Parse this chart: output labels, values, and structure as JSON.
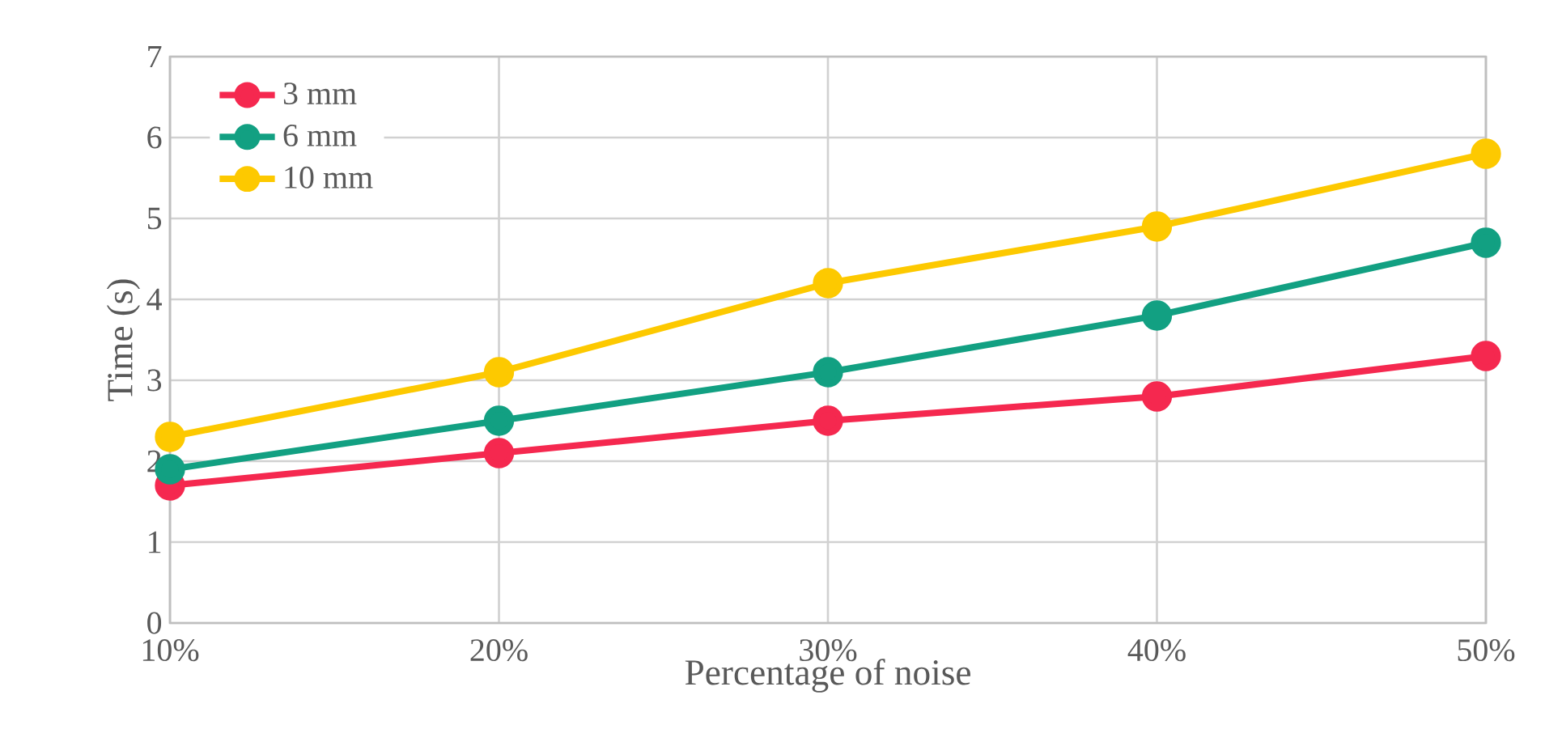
{
  "chart_data": {
    "type": "line",
    "xlabel": "Percentage of noise",
    "ylabel": "Time (s)",
    "categories": [
      "10%",
      "20%",
      "30%",
      "40%",
      "50%"
    ],
    "series": [
      {
        "name": "3 mm",
        "color": "#f5284f",
        "values": [
          1.7,
          2.1,
          2.5,
          2.8,
          3.3
        ]
      },
      {
        "name": "6 mm",
        "color": "#12a082",
        "values": [
          1.9,
          2.5,
          3.1,
          3.8,
          4.7
        ]
      },
      {
        "name": "10 mm",
        "color": "#fdc900",
        "values": [
          2.3,
          3.1,
          4.2,
          4.9,
          5.8
        ]
      }
    ],
    "ylim": [
      0,
      7
    ],
    "yticks": [
      0,
      1,
      2,
      3,
      4,
      5,
      6,
      7
    ],
    "grid": true,
    "legend": "top left",
    "marker": "circle",
    "line_style": "solid"
  }
}
